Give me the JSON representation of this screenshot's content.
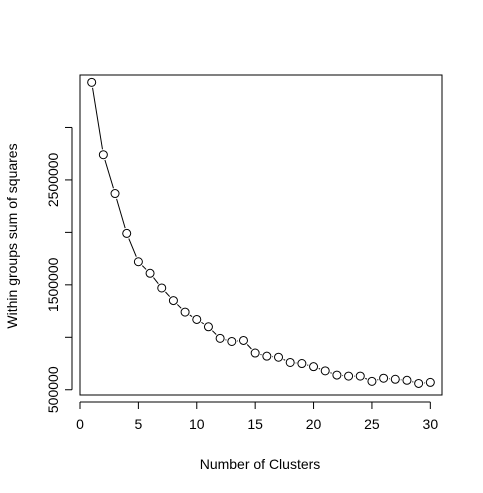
{
  "chart_data": {
    "type": "line",
    "title": "",
    "xlabel": "Number of Clusters",
    "ylabel": "Within groups sum of squares",
    "xlim": [
      0,
      31
    ],
    "ylim": [
      450000,
      3500000
    ],
    "xticks": [
      0,
      5,
      10,
      15,
      20,
      25,
      30
    ],
    "yticks": [
      500000,
      1000000,
      1500000,
      2000000,
      2500000,
      3000000
    ],
    "yticks_labeled": [
      500000,
      1500000,
      2500000
    ],
    "grid": false,
    "marker": "open-circle",
    "line_color": "#000000",
    "series": [
      {
        "x": [
          1,
          2,
          3,
          4,
          5,
          6,
          7,
          8,
          9,
          10,
          11,
          12,
          13,
          14,
          15,
          16,
          17,
          18,
          19,
          20,
          21,
          22,
          23,
          24,
          25,
          26,
          27,
          28,
          29,
          30
        ],
        "values": [
          3430000,
          2740000,
          2370000,
          1990000,
          1720000,
          1610000,
          1470000,
          1350000,
          1240000,
          1170000,
          1100000,
          990000,
          960000,
          970000,
          850000,
          820000,
          810000,
          760000,
          750000,
          720000,
          680000,
          640000,
          630000,
          630000,
          580000,
          610000,
          600000,
          590000,
          560000,
          570000
        ]
      }
    ]
  }
}
